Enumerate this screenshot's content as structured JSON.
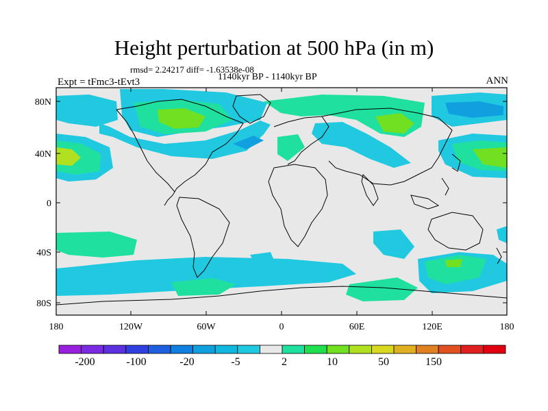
{
  "title": "Height perturbation at 500 hPa (in m)",
  "stats_line": "rmsd= 2.24217 diff= -1.63538e-08",
  "periods": "1140kyr BP - 1140kyr BP",
  "experiment": "Expt = tFmc3-tEvt3",
  "season": "ANN",
  "map": {
    "lon_ticks": [
      "180",
      "120W",
      "60W",
      "0",
      "60E",
      "120E",
      "180"
    ],
    "lat_ticks": [
      "80N",
      "40N",
      "0",
      "40S",
      "80S"
    ],
    "background_color": "#e8e8e8",
    "coastline_color": "#000000"
  },
  "colorbar": {
    "colors": [
      "#9a20e0",
      "#7a2ae0",
      "#5a30e0",
      "#3040e0",
      "#2060e0",
      "#1080e0",
      "#10a0e0",
      "#10b8e0",
      "#20c8e0",
      "#e8e8e8",
      "#20e0a0",
      "#20e050",
      "#70e020",
      "#b0e020",
      "#d8d820",
      "#e0b020",
      "#e08020",
      "#e05020",
      "#e02020",
      "#e00010"
    ],
    "labels": [
      "-200",
      "-100",
      "-20",
      "-5",
      "2",
      "10",
      "50",
      "150"
    ]
  }
}
